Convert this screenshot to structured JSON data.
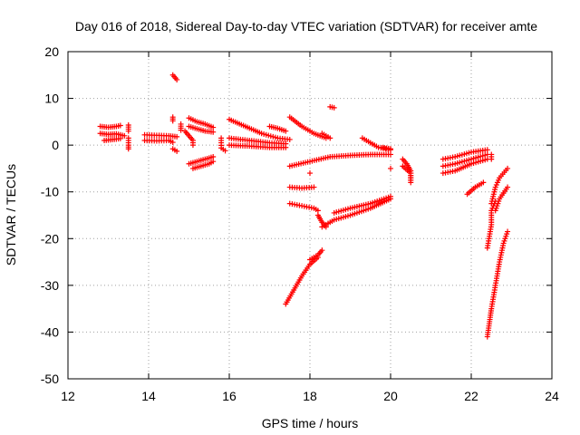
{
  "chart_data": {
    "type": "scatter",
    "title": "Day 016 of 2018, Sidereal Day-to-day VTEC variation (SDTVAR) for receiver amte",
    "xlabel": "GPS time / hours",
    "ylabel": "SDTVAR / TECUs",
    "xlim": [
      12,
      24
    ],
    "ylim": [
      -50,
      20
    ],
    "xticks": [
      "12",
      "14",
      "16",
      "18",
      "20",
      "22",
      "24"
    ],
    "yticks": [
      "20",
      "10",
      "0",
      "-10",
      "-20",
      "-30",
      "-40",
      "-50"
    ],
    "grid": true,
    "legend": "none",
    "marker": "plus",
    "color": "#ff0000",
    "series": [
      {
        "segments": [
          [
            [
              12.8,
              2.5
            ],
            [
              13.0,
              2.3
            ],
            [
              13.2,
              2.4
            ],
            [
              13.4,
              2.0
            ]
          ],
          [
            [
              12.8,
              4.0
            ],
            [
              13.0,
              3.8
            ],
            [
              13.2,
              4.0
            ],
            [
              13.3,
              4.2
            ]
          ],
          [
            [
              12.9,
              1.0
            ],
            [
              13.1,
              1.2
            ],
            [
              13.3,
              1.4
            ]
          ],
          [
            [
              13.5,
              4.3
            ],
            [
              13.5,
              3.0
            ]
          ],
          [
            [
              13.5,
              1.5
            ],
            [
              13.5,
              0.0
            ],
            [
              13.5,
              -0.8
            ]
          ],
          [
            [
              13.9,
              2.2
            ],
            [
              14.2,
              2.1
            ],
            [
              14.5,
              2.0
            ],
            [
              14.7,
              1.8
            ]
          ],
          [
            [
              13.9,
              1.0
            ],
            [
              14.2,
              0.9
            ],
            [
              14.5,
              1.0
            ],
            [
              14.6,
              0.6
            ]
          ],
          [
            [
              14.6,
              15.0
            ],
            [
              14.7,
              14.0
            ]
          ],
          [
            [
              14.6,
              6.0
            ],
            [
              14.6,
              5.2
            ]
          ],
          [
            [
              14.6,
              -0.8
            ],
            [
              14.7,
              -1.3
            ]
          ],
          [
            [
              14.8,
              4.5
            ],
            [
              14.8,
              3.2
            ]
          ],
          [
            [
              14.9,
              3.0
            ],
            [
              15.0,
              2.0
            ],
            [
              15.1,
              1.0
            ],
            [
              15.1,
              0.0
            ]
          ],
          [
            [
              15.0,
              5.8
            ],
            [
              15.2,
              5.0
            ],
            [
              15.4,
              4.5
            ],
            [
              15.6,
              3.8
            ]
          ],
          [
            [
              15.0,
              4.0
            ],
            [
              15.2,
              3.5
            ],
            [
              15.4,
              3.0
            ],
            [
              15.6,
              2.8
            ]
          ],
          [
            [
              15.0,
              -4.0
            ],
            [
              15.2,
              -3.5
            ],
            [
              15.4,
              -3.0
            ],
            [
              15.6,
              -2.5
            ]
          ],
          [
            [
              15.1,
              -5.0
            ],
            [
              15.3,
              -4.5
            ],
            [
              15.5,
              -4.0
            ],
            [
              15.6,
              -3.5
            ]
          ],
          [
            [
              15.8,
              1.5
            ],
            [
              15.8,
              0.5
            ],
            [
              15.8,
              -0.6
            ],
            [
              15.9,
              -1.2
            ]
          ],
          [
            [
              16.0,
              5.5
            ],
            [
              16.4,
              4.0
            ],
            [
              16.8,
              2.5
            ],
            [
              17.2,
              1.5
            ],
            [
              17.5,
              1.2
            ]
          ],
          [
            [
              16.0,
              1.5
            ],
            [
              16.5,
              1.0
            ],
            [
              17.0,
              0.5
            ],
            [
              17.4,
              0.3
            ]
          ],
          [
            [
              16.0,
              0.0
            ],
            [
              16.5,
              -0.2
            ],
            [
              17.0,
              -0.5
            ],
            [
              17.4,
              -0.5
            ]
          ],
          [
            [
              17.0,
              4.0
            ],
            [
              17.2,
              3.6
            ],
            [
              17.4,
              3.0
            ]
          ],
          [
            [
              17.5,
              6.0
            ],
            [
              17.8,
              4.0
            ],
            [
              18.1,
              2.5
            ],
            [
              18.4,
              1.5
            ]
          ],
          [
            [
              18.3,
              2.5
            ],
            [
              18.5,
              1.5
            ]
          ],
          [
            [
              18.6,
              8.0
            ],
            [
              18.5,
              8.2
            ]
          ],
          [
            [
              17.5,
              -4.5
            ],
            [
              18.0,
              -3.5
            ],
            [
              18.5,
              -2.5
            ],
            [
              19.0,
              -2.2
            ],
            [
              19.5,
              -2.0
            ],
            [
              20.0,
              -2.0
            ]
          ],
          [
            [
              17.5,
              -9.0
            ],
            [
              17.8,
              -9.2
            ],
            [
              18.1,
              -9.0
            ]
          ],
          [
            [
              17.5,
              -12.5
            ],
            [
              17.8,
              -13.0
            ],
            [
              18.1,
              -13.5
            ],
            [
              18.2,
              -14.0
            ]
          ],
          [
            [
              18.0,
              -6.0
            ]
          ],
          [
            [
              17.4,
              -34.0
            ],
            [
              17.6,
              -31.0
            ],
            [
              17.8,
              -28.0
            ],
            [
              18.0,
              -25.5
            ],
            [
              18.2,
              -24.0
            ]
          ],
          [
            [
              18.0,
              -24.5
            ],
            [
              18.2,
              -23.5
            ],
            [
              18.3,
              -22.5
            ]
          ],
          [
            [
              18.2,
              -15.0
            ],
            [
              18.3,
              -16.5
            ],
            [
              18.4,
              -17.5
            ]
          ],
          [
            [
              18.3,
              -17.5
            ],
            [
              18.6,
              -16.0
            ],
            [
              19.0,
              -15.0
            ],
            [
              19.5,
              -13.5
            ],
            [
              20.0,
              -11.5
            ]
          ],
          [
            [
              18.6,
              -14.5
            ],
            [
              19.0,
              -13.5
            ],
            [
              19.5,
              -12.5
            ],
            [
              20.0,
              -11.0
            ]
          ],
          [
            [
              19.3,
              1.5
            ],
            [
              19.5,
              0.5
            ],
            [
              19.7,
              -0.5
            ],
            [
              20.0,
              -1.0
            ]
          ],
          [
            [
              19.8,
              -0.5
            ],
            [
              20.0,
              -0.8
            ]
          ],
          [
            [
              20.0,
              -5.0
            ]
          ],
          [
            [
              20.3,
              -3.0
            ],
            [
              20.4,
              -4.0
            ],
            [
              20.5,
              -5.5
            ],
            [
              20.5,
              -7.5
            ]
          ],
          [
            [
              20.3,
              -4.5
            ],
            [
              20.5,
              -6.0
            ],
            [
              20.5,
              -8.0
            ]
          ],
          [
            [
              21.3,
              -3.0
            ],
            [
              21.6,
              -2.5
            ],
            [
              22.0,
              -1.5
            ],
            [
              22.4,
              -1.0
            ]
          ],
          [
            [
              21.3,
              -4.5
            ],
            [
              21.6,
              -4.0
            ],
            [
              22.0,
              -3.0
            ],
            [
              22.4,
              -2.0
            ]
          ],
          [
            [
              21.3,
              -6.0
            ],
            [
              21.6,
              -5.5
            ],
            [
              22.0,
              -4.0
            ],
            [
              22.4,
              -3.0
            ]
          ],
          [
            [
              22.5,
              -2.0
            ],
            [
              22.5,
              -3.0
            ]
          ],
          [
            [
              21.9,
              -10.5
            ],
            [
              22.1,
              -9.0
            ],
            [
              22.3,
              -8.0
            ]
          ],
          [
            [
              22.4,
              -22.0
            ],
            [
              22.5,
              -17.0
            ],
            [
              22.5,
              -14.0
            ],
            [
              22.6,
              -12.0
            ]
          ],
          [
            [
              22.5,
              -12.5
            ],
            [
              22.6,
              -9.0
            ],
            [
              22.7,
              -7.0
            ],
            [
              22.9,
              -5.0
            ]
          ],
          [
            [
              22.4,
              -41.0
            ],
            [
              22.5,
              -35.0
            ],
            [
              22.6,
              -30.0
            ],
            [
              22.7,
              -25.0
            ],
            [
              22.8,
              -21.0
            ],
            [
              22.9,
              -18.5
            ]
          ],
          [
            [
              22.6,
              -14.0
            ],
            [
              22.7,
              -11.5
            ],
            [
              22.9,
              -9.0
            ]
          ]
        ]
      }
    ]
  }
}
